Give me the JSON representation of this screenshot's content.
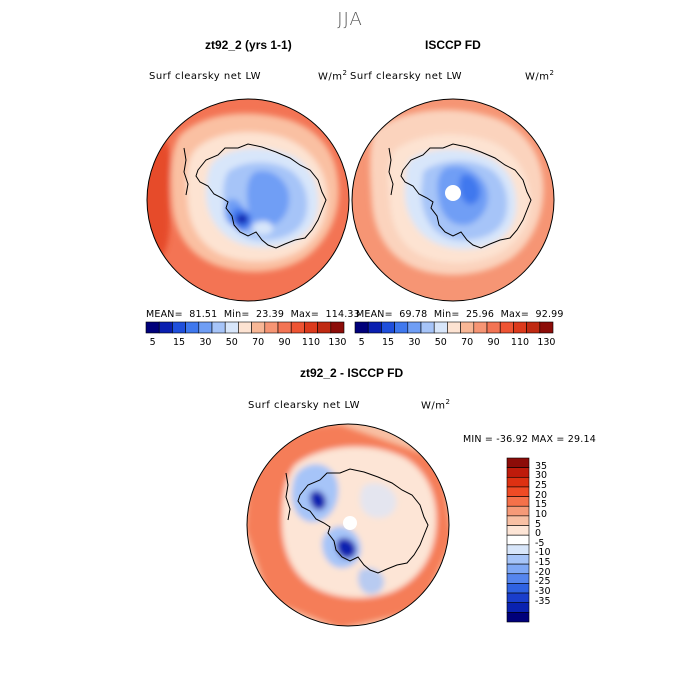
{
  "season": "JJA",
  "panels": [
    {
      "id": "model",
      "title": "zt92_2 (yrs 1-1)",
      "variable": "Surf clearsky net LW",
      "units": "W/m",
      "units_sup": "2",
      "mean_label": "MEAN=",
      "mean": "81.51",
      "min_label": "Min=",
      "min": "23.39",
      "max_label": "Max=",
      "max": "114.33"
    },
    {
      "id": "obs",
      "title": "ISCCP FD",
      "variable": "Surf clearsky net LW",
      "units": "W/m",
      "units_sup": "2",
      "mean_label": "MEAN=",
      "mean": "69.78",
      "min_label": "Min=",
      "min": "25.96",
      "max_label": "Max=",
      "max": "92.99"
    },
    {
      "id": "diff",
      "title": "zt92_2 - ISCCP FD",
      "variable": "Surf clearsky net LW",
      "units": "W/m",
      "units_sup": "2",
      "minmax_text": "MIN = -36.92 MAX =  29.14"
    }
  ],
  "colorbar_abs": {
    "colors": [
      "#00007a",
      "#0a1fb0",
      "#1f4fdc",
      "#3f78ee",
      "#6f9ef5",
      "#a6c4f8",
      "#d8e6fa",
      "#fde3d2",
      "#f8b796",
      "#f69574",
      "#f37454",
      "#ee5433",
      "#dc3a1c",
      "#c02a12",
      "#8c0c08"
    ],
    "tick_labels": [
      "5",
      "15",
      "30",
      "50",
      "70",
      "90",
      "110",
      "130"
    ]
  },
  "colorbar_diff": {
    "colors": [
      "#8c0c08",
      "#be1b0b",
      "#dd3112",
      "#ef4b25",
      "#f5714a",
      "#f69a78",
      "#f8c0a4",
      "#fde5d6",
      "#ffffff",
      "#d8e6fa",
      "#a6c4f8",
      "#7fa8f5",
      "#5585ee",
      "#2f62e2",
      "#1a3ecc",
      "#0a22b0",
      "#00007a"
    ],
    "tick_labels": [
      "35",
      "30",
      "25",
      "20",
      "15",
      "10",
      "5",
      "0",
      "-5",
      "-10",
      "-15",
      "-20",
      "-25",
      "-30",
      "-35"
    ]
  },
  "map_colors": {
    "ocean_warm": "#f37454",
    "ocean_hot": "#e64b2a",
    "sea_ice": "#fac0a2",
    "ice_edge": "#fde3d2",
    "ice_pale": "#d8e6fa",
    "ice_light": "#a6c4f8",
    "ice_mid": "#6f9ef5",
    "ice_deep": "#3f78ee",
    "ice_core": "#0a1fb0",
    "obs_ocean": "#f69574",
    "obs_pale": "#fbd3bd",
    "diff_bg": "#f8c0a4",
    "diff_warm": "#f5714a",
    "diff_pale": "#fde5d6",
    "diff_blue": "#a6c4f8",
    "diff_deep": "#0a22b0"
  }
}
